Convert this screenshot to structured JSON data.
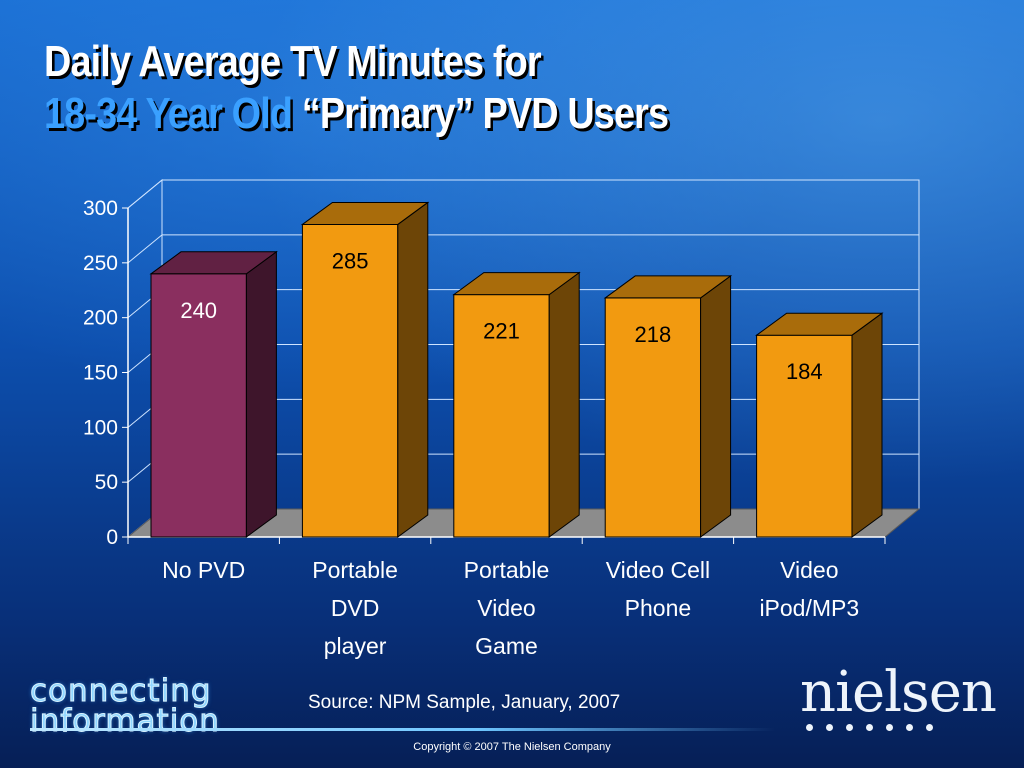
{
  "title": {
    "line1": "Daily Average TV Minutes for",
    "line2_highlight": "18-34 Year Old",
    "line2_rest": " “Primary” PVD Users"
  },
  "chart_data": {
    "type": "bar",
    "categories": [
      [
        "No PVD"
      ],
      [
        "Portable",
        "DVD",
        "player"
      ],
      [
        "Portable",
        "Video",
        "Game"
      ],
      [
        "Video Cell",
        "Phone"
      ],
      [
        "Video",
        "iPod/MP3"
      ]
    ],
    "values": [
      240,
      285,
      221,
      218,
      184
    ],
    "value_labels": [
      "240",
      "285",
      "221",
      "218",
      "184"
    ],
    "ylim": [
      0,
      300
    ],
    "yticks": [
      "0",
      "50",
      "100",
      "150",
      "200",
      "250",
      "300"
    ],
    "grid": true,
    "style": "3d",
    "colors": [
      "#8a2f5f",
      "#f29a10",
      "#f29a10",
      "#f29a10",
      "#f29a10"
    ]
  },
  "footer": {
    "source": "Source:  NPM Sample, January, 2007",
    "copyright": "Copyright  ©  2007 The Nielsen Company"
  },
  "logos": {
    "left_line1": "connecting",
    "left_line2": "information",
    "right_word": "nielsen"
  }
}
